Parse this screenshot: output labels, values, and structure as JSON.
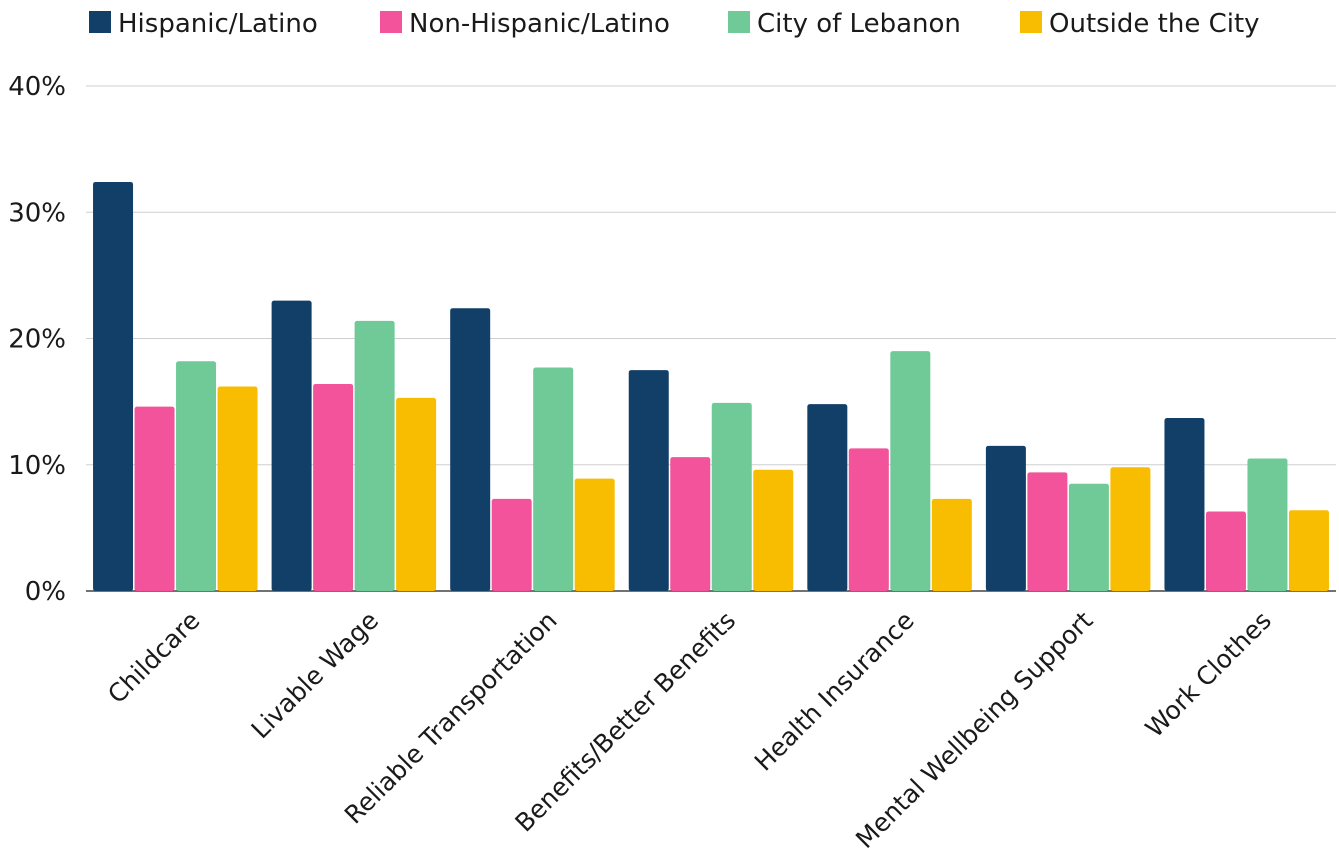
{
  "chart_data": {
    "type": "bar",
    "title": "",
    "xlabel": "",
    "ylabel": "",
    "ylim": [
      0,
      40
    ],
    "yticks": [
      0,
      10,
      20,
      30,
      40
    ],
    "ytick_labels": [
      "0%",
      "10%",
      "20%",
      "30%",
      "40%"
    ],
    "grid": true,
    "legend_position": "top",
    "categories": [
      "Childcare",
      "Livable Wage",
      "Reliable Transportation",
      "Benefits/Better Benefits",
      "Health Insurance",
      "Mental Wellbeing Support",
      "Work Clothes"
    ],
    "series": [
      {
        "name": "Hispanic/Latino",
        "color": "#123f67",
        "values": [
          32.4,
          23.0,
          22.4,
          17.5,
          14.8,
          11.5,
          13.7
        ]
      },
      {
        "name": "Non-Hispanic/Latino",
        "color": "#f2539a",
        "values": [
          14.6,
          16.4,
          7.3,
          10.6,
          11.3,
          9.4,
          6.3
        ]
      },
      {
        "name": "City of Lebanon",
        "color": "#6fca98",
        "values": [
          18.2,
          21.4,
          17.7,
          14.9,
          19.0,
          8.5,
          10.5
        ]
      },
      {
        "name": "Outside the City",
        "color": "#f8bd00",
        "values": [
          16.2,
          15.3,
          8.9,
          9.6,
          7.3,
          9.8,
          6.4
        ]
      }
    ]
  }
}
